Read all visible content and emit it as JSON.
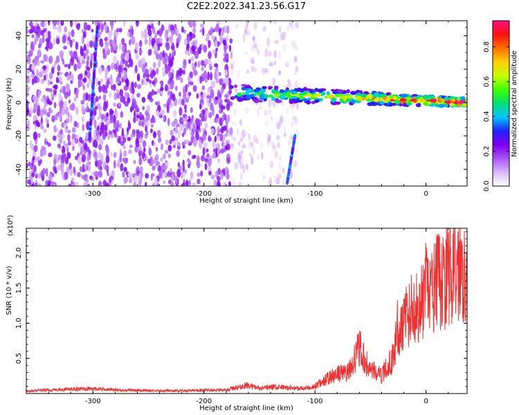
{
  "figure_title": "C2E2.2022.341.23.56.G17",
  "colors": {
    "snr_line": "#f03030",
    "axis": "#000000",
    "colormap": [
      "#ffffff",
      "#d9b8f5",
      "#a855f7",
      "#7c00f0",
      "#2020ff",
      "#00c8ff",
      "#00e070",
      "#40ff00",
      "#c8ff00",
      "#ffd000",
      "#ff7000",
      "#ff1010",
      "#ff1080"
    ]
  },
  "chart_data": [
    {
      "type": "heatmap",
      "title": "",
      "xlabel": "Height of straight line (km)",
      "ylabel": "Frequency (Hz)",
      "xlim": [
        -360,
        37
      ],
      "ylim": [
        -50,
        49
      ],
      "x_ticks": [
        -300,
        -200,
        -100,
        0
      ],
      "x_tick_labels": [
        "-300",
        "-200",
        "-100",
        "0"
      ],
      "y_ticks": [
        -40,
        -20,
        0,
        20,
        40
      ],
      "y_tick_labels": [
        "-40",
        "-20",
        "0",
        "20",
        "40"
      ],
      "colorbar": {
        "label": "Normalized spectral amplitude",
        "range": [
          0,
          0.95
        ],
        "ticks": [
          0.0,
          0.2,
          0.4,
          0.6,
          0.8
        ],
        "tick_labels": [
          "0.0",
          "0.2",
          "0.4",
          "0.6",
          "0.8"
        ]
      },
      "features": [
        {
          "kind": "noise",
          "x_range": [
            -360,
            -175
          ],
          "y_range": [
            -50,
            49
          ],
          "amplitude": 0.2
        },
        {
          "kind": "sparse_noise",
          "x_range": [
            -175,
            -115
          ],
          "y_range": [
            -50,
            49
          ],
          "amplitude": 0.1
        },
        {
          "kind": "streak",
          "x_range": [
            -303,
            -296
          ],
          "y_range": [
            -22,
            45
          ],
          "amplitude": 0.3
        },
        {
          "kind": "streak",
          "x_range": [
            -125,
            -118
          ],
          "y_range": [
            -48,
            -20
          ],
          "amplitude": 0.3
        },
        {
          "kind": "signal_band",
          "x_range": [
            -175,
            37
          ],
          "y_start": 6,
          "y_end": 0,
          "amplitude_start": 0.45,
          "amplitude_end": 0.9
        }
      ]
    },
    {
      "type": "line",
      "title": "",
      "xlabel": "Height of straight line (km)",
      "ylabel": "SNR (10 * v/v)",
      "y_scale_label": "(x10⁴)",
      "xlim": [
        -360,
        37
      ],
      "ylim": [
        0,
        23500
      ],
      "x_ticks": [
        -300,
        -200,
        -100,
        0
      ],
      "x_tick_labels": [
        "-300",
        "-200",
        "-100",
        "0"
      ],
      "y_ticks": [
        5000,
        10000,
        15000,
        20000
      ],
      "y_tick_labels": [
        "0.5",
        "1.0",
        "1.5",
        "2.0"
      ],
      "series": [
        {
          "x": [
            -360,
            -340,
            -320,
            -300,
            -280,
            -260,
            -240,
            -220,
            -200,
            -180,
            -160,
            -150,
            -140,
            -120,
            -110,
            -100,
            -90,
            -80,
            -70,
            -60,
            -55,
            -50,
            -45,
            -40,
            -30,
            -25,
            -22,
            -20,
            -15,
            -10,
            -5,
            0,
            5,
            10,
            15,
            20,
            25,
            30,
            37
          ],
          "y": [
            400,
            500,
            600,
            700,
            500,
            450,
            400,
            400,
            500,
            500,
            1200,
            700,
            900,
            800,
            700,
            1000,
            2000,
            2800,
            3000,
            6500,
            4500,
            3500,
            3000,
            2500,
            5000,
            10000,
            9000,
            11000,
            11500,
            12500,
            12000,
            15000,
            14000,
            16000,
            15500,
            17500,
            17000,
            18000,
            17500
          ]
        }
      ]
    }
  ]
}
